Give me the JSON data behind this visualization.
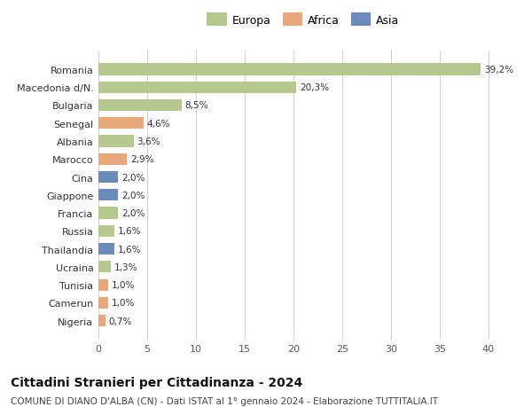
{
  "categories": [
    "Romania",
    "Macedonia d/N.",
    "Bulgaria",
    "Senegal",
    "Albania",
    "Marocco",
    "Cina",
    "Giappone",
    "Francia",
    "Russia",
    "Thailandia",
    "Ucraina",
    "Tunisia",
    "Camerun",
    "Nigeria"
  ],
  "values": [
    39.2,
    20.3,
    8.5,
    4.6,
    3.6,
    2.9,
    2.0,
    2.0,
    2.0,
    1.6,
    1.6,
    1.3,
    1.0,
    1.0,
    0.7
  ],
  "labels": [
    "39,2%",
    "20,3%",
    "8,5%",
    "4,6%",
    "3,6%",
    "2,9%",
    "2,0%",
    "2,0%",
    "2,0%",
    "1,6%",
    "1,6%",
    "1,3%",
    "1,0%",
    "1,0%",
    "0,7%"
  ],
  "continents": [
    "Europa",
    "Europa",
    "Europa",
    "Africa",
    "Europa",
    "Africa",
    "Asia",
    "Asia",
    "Europa",
    "Europa",
    "Asia",
    "Europa",
    "Africa",
    "Africa",
    "Africa"
  ],
  "colors": {
    "Europa": "#b5c98e",
    "Africa": "#e8a87c",
    "Asia": "#6b8cba"
  },
  "xlim": [
    0,
    42
  ],
  "xticks": [
    0,
    5,
    10,
    15,
    20,
    25,
    30,
    35,
    40
  ],
  "background_color": "#ffffff",
  "grid_color": "#d0d0d0",
  "title": "Cittadini Stranieri per Cittadinanza - 2024",
  "subtitle": "COMUNE DI DIANO D'ALBA (CN) - Dati ISTAT al 1° gennaio 2024 - Elaborazione TUTTITALIA.IT",
  "title_fontsize": 10,
  "subtitle_fontsize": 7.5,
  "bar_height": 0.65,
  "label_fontsize": 7.5,
  "ytick_fontsize": 8,
  "xtick_fontsize": 8
}
